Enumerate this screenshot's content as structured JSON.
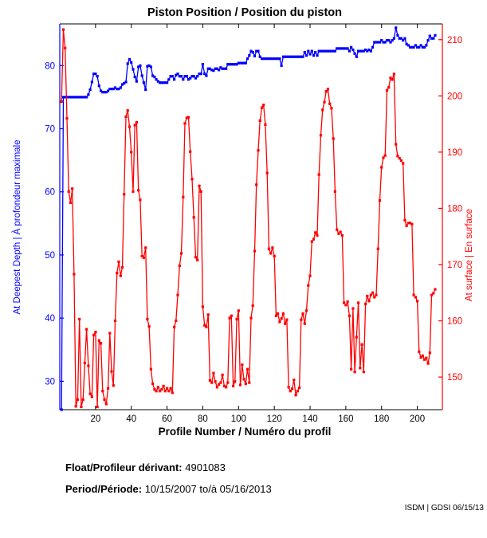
{
  "title": "Piston Position / Position du piston",
  "footer": {
    "float_label": "Float/Profileur dérivant:",
    "float_value": "4901083",
    "period_label": "Period/Période:",
    "period_value": "10/15/2007 to/à 05/16/2013",
    "credit": "ISDM | GDSI 06/15/13"
  },
  "chart_data": {
    "type": "line",
    "title": "Piston Position / Position du piston",
    "xlabel": "Profile Number / Numéro du profil",
    "xlim": [
      0,
      214
    ],
    "x_ticks": [
      20,
      40,
      60,
      80,
      100,
      120,
      140,
      160,
      180,
      200
    ],
    "grid": false,
    "legend": "none",
    "left_axis": {
      "label": "At Deepest Depth | À profondeur maximale",
      "color": "#0000ff",
      "ticks": [
        30,
        40,
        50,
        60,
        70,
        80
      ],
      "ylim": [
        25.5,
        86.6
      ]
    },
    "right_axis": {
      "label": "At surface | En surface",
      "color": "#ff0000",
      "ticks": [
        150,
        160,
        170,
        180,
        190,
        200,
        210
      ],
      "ylim": [
        144.2,
        212.8
      ]
    },
    "series": [
      {
        "name": "At Deepest Depth | À profondeur maximale",
        "axis": "left",
        "color": "#0000ff",
        "x_start": 1,
        "x_step": 1,
        "values": [
          25.5,
          75,
          75,
          75,
          75,
          75,
          75,
          75,
          75,
          75,
          75,
          75,
          75,
          75,
          75,
          75.4,
          76.2,
          77.4,
          78.7,
          78.7,
          78.3,
          76.8,
          76,
          75.8,
          75.8,
          75.8,
          76,
          76.3,
          76.3,
          76.3,
          76.5,
          76.3,
          76.3,
          76.5,
          77,
          77.2,
          77.4,
          80.3,
          81,
          80.5,
          79.4,
          78.2,
          77.5,
          79.8,
          80,
          78.4,
          77.3,
          76.2,
          79.9,
          80,
          79.8,
          78.4,
          78.2,
          77.8,
          77.5,
          77.3,
          77.3,
          77.3,
          77.3,
          77.3,
          77.8,
          78.3,
          78.3,
          77.8,
          78.5,
          78.7,
          78.3,
          78.3,
          77.8,
          78.3,
          78.3,
          77.8,
          78,
          78.3,
          78.3,
          78,
          78.3,
          78.7,
          78.7,
          80.2,
          78.7,
          78.4,
          79.5,
          79.5,
          79.3,
          79.2,
          79.5,
          79.5,
          79.3,
          79.7,
          79.5,
          79.5,
          79.5,
          80.2,
          80.2,
          80.2,
          80.2,
          80.2,
          80.2,
          80.4,
          80.4,
          80.4,
          80.4,
          80.4,
          81.1,
          81.6,
          82.3,
          82.1,
          81.5,
          82.3,
          82.3,
          81.4,
          81.1,
          81.1,
          81.1,
          81.1,
          81.1,
          81.1,
          81.1,
          81.1,
          81.1,
          81.1,
          81.1,
          80,
          81.4,
          81.4,
          81.4,
          81.4,
          81.4,
          81.4,
          81.4,
          81.4,
          81.4,
          81.4,
          81.4,
          81.4,
          82.1,
          81.6,
          82.3,
          81.8,
          82.3,
          81.6,
          82.1,
          81.6,
          82.3,
          82.3,
          82.3,
          82.3,
          82.3,
          82.3,
          82.3,
          82.3,
          82.3,
          82.3,
          82.7,
          82.7,
          82.7,
          82.7,
          82.7,
          82.7,
          82.7,
          82.3,
          82.9,
          82.5,
          81.9,
          81.4,
          82.3,
          82.3,
          82.3,
          82.3,
          82.5,
          82.3,
          82.5,
          82.3,
          82.9,
          83.7,
          83.7,
          83.7,
          83.7,
          84,
          83.7,
          83.7,
          84,
          84,
          83.7,
          84,
          84.3,
          86,
          84.8,
          84.3,
          84.3,
          84,
          84.3,
          83.4,
          83.2,
          82.9,
          82.9,
          82.9,
          83.2,
          82.9,
          82.9,
          83.2,
          82.9,
          82.9,
          83.2,
          84,
          84.7,
          84.3,
          84.3,
          84.8
        ]
      },
      {
        "name": "At surface | En surface",
        "axis": "right",
        "color": "#ff0000",
        "x_start": 1,
        "x_step": 1,
        "values": [
          199,
          211.8,
          208.5,
          196,
          183,
          181,
          183.5,
          168.3,
          144.8,
          146,
          160.3,
          144.7,
          146,
          152.5,
          158.5,
          152,
          147,
          146.5,
          157.5,
          158,
          144.7,
          156.5,
          156,
          147.5,
          146,
          145.2,
          148,
          157.8,
          151,
          148.5,
          160,
          168.5,
          170.5,
          168,
          169.5,
          182.5,
          196.3,
          197.4,
          194.5,
          190,
          183,
          194.8,
          195.3,
          183.2,
          181.5,
          171.5,
          171.2,
          173,
          160.3,
          159,
          151.4,
          148.8,
          147.8,
          147.5,
          148.2,
          147.5,
          147.8,
          148.4,
          147.5,
          148,
          147.5,
          148,
          147.2,
          158.9,
          160,
          164.6,
          169.8,
          172,
          182,
          195.1,
          196.1,
          196.2,
          190.1,
          185.2,
          178.4,
          171.3,
          170.8,
          184,
          183,
          162.5,
          159.2,
          158.9,
          161.1,
          149.4,
          149,
          150.7,
          149.2,
          148.2,
          148.7,
          149,
          150.4,
          148.4,
          148.2,
          149,
          160.5,
          160.9,
          148.4,
          149.2,
          160.3,
          161.8,
          148.6,
          152.2,
          149.6,
          148.8,
          151.4,
          149,
          160.5,
          162.7,
          172.4,
          184.2,
          190.3,
          195.6,
          197.9,
          198.4,
          194.9,
          186.3,
          172.8,
          172,
          173,
          171.5,
          160.9,
          161.3,
          159.8,
          160.4,
          161.3,
          159.5,
          160.2,
          148.2,
          147.5,
          147.9,
          149.5,
          146.8,
          147.5,
          148.1,
          160.2,
          161.3,
          159.5,
          161.8,
          166.3,
          168,
          174.1,
          174.5,
          175.7,
          175.2,
          186,
          193,
          197.5,
          198.9,
          200.8,
          201.2,
          198.6,
          197.8,
          192.4,
          183,
          176.2,
          175.5,
          175.8,
          175.2,
          163.2,
          162.8,
          163.4,
          160.9,
          151.4,
          162.2,
          150.9,
          157.1,
          163.2,
          151.6,
          155.8,
          150.9,
          163,
          164.4,
          163.5,
          164.6,
          165,
          164.2,
          164.6,
          172.8,
          181.4,
          187.3,
          189,
          189.4,
          201,
          201.5,
          203.2,
          202.9,
          203.9,
          191.4,
          189.3,
          188.9,
          188.5,
          188,
          177.9,
          176.9,
          177.4,
          177.4,
          177.2,
          164.6,
          164.2,
          163.5,
          154.5,
          153.5,
          153.8,
          153.1,
          153.4,
          152.4,
          154.3,
          164.6,
          164.9,
          165.6
        ]
      }
    ]
  }
}
